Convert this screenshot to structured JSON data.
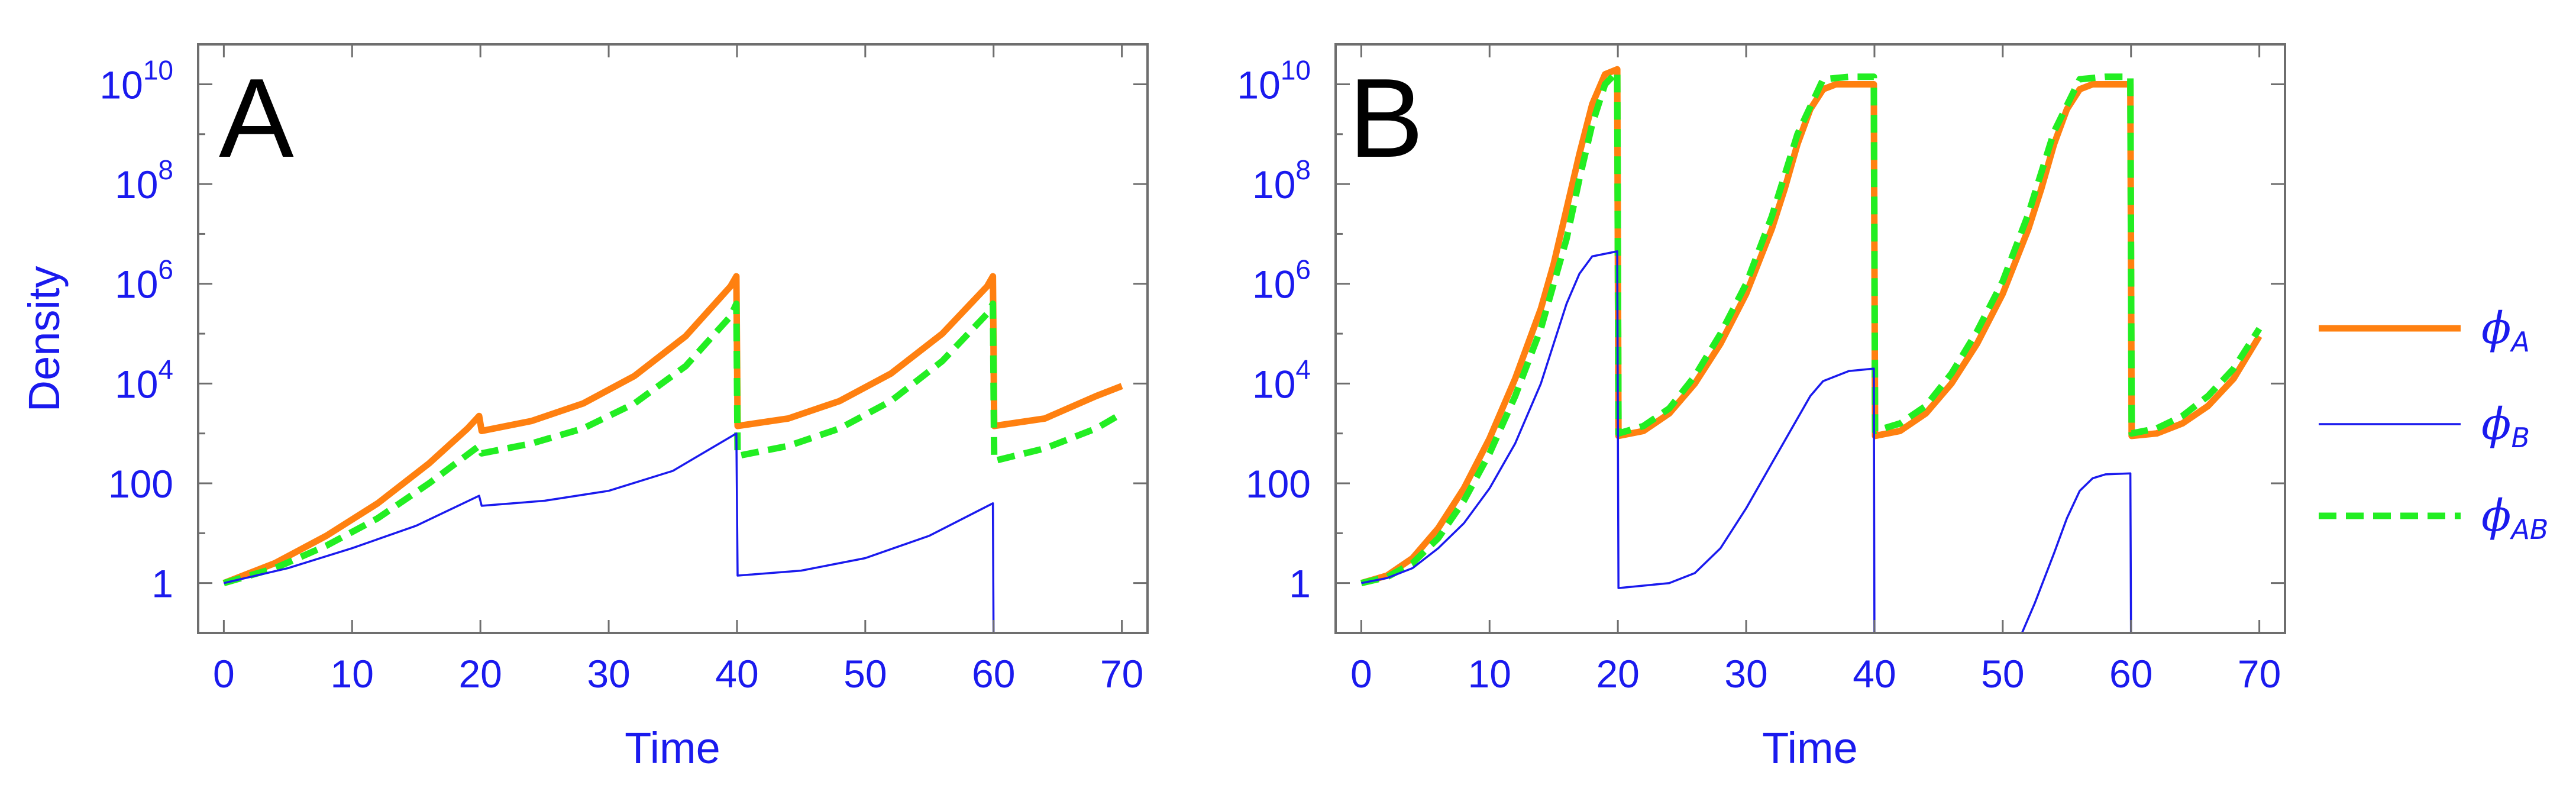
{
  "figure": {
    "legend": [
      {
        "key": "A",
        "symbol": "ϕ",
        "sub": "A",
        "color": "#ff8010",
        "style": "solid",
        "width": "thick"
      },
      {
        "key": "B",
        "symbol": "ϕ",
        "sub": "B",
        "color": "#1a1aee",
        "style": "solid",
        "width": "thin"
      },
      {
        "key": "AB",
        "symbol": "ϕ",
        "sub": "AB",
        "color": "#22ee22",
        "style": "dashed",
        "width": "thick"
      }
    ]
  },
  "chart_data": [
    {
      "type": "line",
      "panel_label": "A",
      "title": "",
      "xlabel": "Time",
      "ylabel": "Density",
      "yscale": "log",
      "xlim": [
        -2,
        72
      ],
      "ylim_log10": [
        -1.0,
        10.8
      ],
      "x_ticks": [
        0,
        10,
        20,
        30,
        40,
        50,
        60,
        70
      ],
      "x_tick_labels": [
        "0",
        "10",
        "20",
        "30",
        "40",
        "50",
        "60",
        "70"
      ],
      "y_ticks_log10": [
        0,
        2,
        4,
        6,
        8,
        10
      ],
      "y_tick_labels": [
        {
          "base": "1",
          "exp": ""
        },
        {
          "base": "100",
          "exp": ""
        },
        {
          "base": "10",
          "exp": "4"
        },
        {
          "base": "10",
          "exp": "6"
        },
        {
          "base": "10",
          "exp": "8"
        },
        {
          "base": "10",
          "exp": "10"
        }
      ],
      "series": [
        {
          "name": "A",
          "points_log10": [
            [
              0,
              0
            ],
            [
              4,
              0.4
            ],
            [
              8,
              0.95
            ],
            [
              12,
              1.6
            ],
            [
              16,
              2.4
            ],
            [
              19,
              3.1
            ],
            [
              19.9,
              3.35
            ],
            [
              20.1,
              3.05
            ],
            [
              24,
              3.25
            ],
            [
              28,
              3.6
            ],
            [
              32,
              4.15
            ],
            [
              36,
              4.95
            ],
            [
              39.5,
              5.95
            ],
            [
              39.95,
              6.15
            ],
            [
              40.05,
              3.15
            ],
            [
              44,
              3.3
            ],
            [
              48,
              3.65
            ],
            [
              52,
              4.2
            ],
            [
              56,
              5.0
            ],
            [
              59.5,
              5.95
            ],
            [
              59.95,
              6.15
            ],
            [
              60.05,
              3.15
            ],
            [
              64,
              3.3
            ],
            [
              68,
              3.75
            ],
            [
              70,
              3.95
            ]
          ]
        },
        {
          "name": "AB",
          "points_log10": [
            [
              0,
              0
            ],
            [
              4,
              0.3
            ],
            [
              8,
              0.75
            ],
            [
              12,
              1.3
            ],
            [
              16,
              2.0
            ],
            [
              19.9,
              2.75
            ],
            [
              20.1,
              2.6
            ],
            [
              24,
              2.8
            ],
            [
              28,
              3.1
            ],
            [
              32,
              3.6
            ],
            [
              36,
              4.35
            ],
            [
              39.5,
              5.35
            ],
            [
              39.95,
              5.6
            ],
            [
              40.05,
              2.55
            ],
            [
              44,
              2.75
            ],
            [
              48,
              3.1
            ],
            [
              52,
              3.65
            ],
            [
              56,
              4.45
            ],
            [
              59.5,
              5.4
            ],
            [
              59.95,
              5.6
            ],
            [
              60.05,
              2.45
            ],
            [
              64,
              2.7
            ],
            [
              68,
              3.1
            ],
            [
              70,
              3.4
            ]
          ]
        },
        {
          "name": "B",
          "points_log10": [
            [
              0,
              0
            ],
            [
              5,
              0.3
            ],
            [
              10,
              0.7
            ],
            [
              15,
              1.15
            ],
            [
              19.9,
              1.75
            ],
            [
              20.1,
              1.55
            ],
            [
              25,
              1.65
            ],
            [
              30,
              1.85
            ],
            [
              35,
              2.25
            ],
            [
              39.95,
              3.0
            ],
            [
              40.05,
              0.15
            ],
            [
              45,
              0.25
            ],
            [
              50,
              0.5
            ],
            [
              55,
              0.95
            ],
            [
              59.95,
              1.6
            ],
            [
              60,
              -1.0
            ]
          ]
        }
      ]
    },
    {
      "type": "line",
      "panel_label": "B",
      "title": "",
      "xlabel": "Time",
      "ylabel": "",
      "yscale": "log",
      "xlim": [
        -2,
        72
      ],
      "ylim_log10": [
        -1.0,
        10.8
      ],
      "x_ticks": [
        0,
        10,
        20,
        30,
        40,
        50,
        60,
        70
      ],
      "x_tick_labels": [
        "0",
        "10",
        "20",
        "30",
        "40",
        "50",
        "60",
        "70"
      ],
      "y_ticks_log10": [
        0,
        2,
        4,
        6,
        8,
        10
      ],
      "y_tick_labels": [
        {
          "base": "1",
          "exp": ""
        },
        {
          "base": "100",
          "exp": ""
        },
        {
          "base": "10",
          "exp": "4"
        },
        {
          "base": "10",
          "exp": "6"
        },
        {
          "base": "10",
          "exp": "8"
        },
        {
          "base": "10",
          "exp": "10"
        }
      ],
      "series": [
        {
          "name": "A",
          "points_log10": [
            [
              0,
              0
            ],
            [
              2,
              0.15
            ],
            [
              4,
              0.5
            ],
            [
              6,
              1.1
            ],
            [
              8,
              1.9
            ],
            [
              10,
              2.9
            ],
            [
              12,
              4.1
            ],
            [
              14,
              5.5
            ],
            [
              15,
              6.4
            ],
            [
              16,
              7.5
            ],
            [
              17,
              8.6
            ],
            [
              18,
              9.6
            ],
            [
              19,
              10.2
            ],
            [
              19.95,
              10.3
            ],
            [
              20.05,
              2.95
            ],
            [
              22,
              3.05
            ],
            [
              24,
              3.4
            ],
            [
              26,
              4.0
            ],
            [
              28,
              4.8
            ],
            [
              30,
              5.8
            ],
            [
              32,
              7.1
            ],
            [
              33,
              7.9
            ],
            [
              34,
              8.8
            ],
            [
              35,
              9.5
            ],
            [
              36,
              9.9
            ],
            [
              37,
              10.0
            ],
            [
              39.95,
              10.0
            ],
            [
              40.05,
              2.95
            ],
            [
              42,
              3.05
            ],
            [
              44,
              3.4
            ],
            [
              46,
              4.0
            ],
            [
              48,
              4.8
            ],
            [
              50,
              5.8
            ],
            [
              52,
              7.1
            ],
            [
              53,
              7.9
            ],
            [
              54,
              8.8
            ],
            [
              55,
              9.5
            ],
            [
              56,
              9.9
            ],
            [
              57,
              10.0
            ],
            [
              59.95,
              10.0
            ],
            [
              60.05,
              2.95
            ],
            [
              62,
              3.0
            ],
            [
              64,
              3.2
            ],
            [
              66,
              3.55
            ],
            [
              68,
              4.1
            ],
            [
              70,
              4.95
            ]
          ]
        },
        {
          "name": "AB",
          "points_log10": [
            [
              0,
              0
            ],
            [
              2,
              0.12
            ],
            [
              4,
              0.4
            ],
            [
              6,
              0.9
            ],
            [
              8,
              1.65
            ],
            [
              10,
              2.6
            ],
            [
              12,
              3.75
            ],
            [
              14,
              5.1
            ],
            [
              16,
              6.9
            ],
            [
              17,
              8.1
            ],
            [
              18,
              9.2
            ],
            [
              19,
              10.0
            ],
            [
              19.95,
              10.25
            ],
            [
              20.05,
              3.0
            ],
            [
              22,
              3.15
            ],
            [
              24,
              3.5
            ],
            [
              26,
              4.15
            ],
            [
              28,
              5.0
            ],
            [
              30,
              6.0
            ],
            [
              32,
              7.35
            ],
            [
              34,
              9.0
            ],
            [
              36,
              10.1
            ],
            [
              38,
              10.15
            ],
            [
              39.95,
              10.15
            ],
            [
              40.05,
              3.05
            ],
            [
              42,
              3.2
            ],
            [
              44,
              3.55
            ],
            [
              46,
              4.2
            ],
            [
              48,
              5.05
            ],
            [
              50,
              6.05
            ],
            [
              52,
              7.4
            ],
            [
              54,
              9.05
            ],
            [
              56,
              10.1
            ],
            [
              58,
              10.15
            ],
            [
              59.95,
              10.15
            ],
            [
              60.05,
              3.0
            ],
            [
              62,
              3.1
            ],
            [
              64,
              3.35
            ],
            [
              66,
              3.75
            ],
            [
              68,
              4.3
            ],
            [
              70,
              5.1
            ]
          ]
        },
        {
          "name": "B",
          "points_log10": [
            [
              0,
              0
            ],
            [
              2,
              0.1
            ],
            [
              4,
              0.3
            ],
            [
              6,
              0.7
            ],
            [
              8,
              1.2
            ],
            [
              10,
              1.9
            ],
            [
              12,
              2.8
            ],
            [
              14,
              4.0
            ],
            [
              15,
              4.8
            ],
            [
              16,
              5.6
            ],
            [
              17,
              6.2
            ],
            [
              18,
              6.55
            ],
            [
              19.95,
              6.65
            ],
            [
              20.05,
              -0.1
            ],
            [
              24,
              0.0
            ],
            [
              26,
              0.2
            ],
            [
              28,
              0.7
            ],
            [
              30,
              1.5
            ],
            [
              32,
              2.4
            ],
            [
              34,
              3.3
            ],
            [
              35,
              3.75
            ],
            [
              36,
              4.05
            ],
            [
              38,
              4.25
            ],
            [
              39.95,
              4.3
            ],
            [
              40,
              -1.0
            ],
            [
              51.5,
              -1.0
            ],
            [
              52.5,
              -0.4
            ],
            [
              54,
              0.6
            ],
            [
              55,
              1.3
            ],
            [
              56,
              1.85
            ],
            [
              57,
              2.1
            ],
            [
              58,
              2.18
            ],
            [
              59.95,
              2.2
            ],
            [
              60,
              -1.0
            ]
          ]
        }
      ]
    }
  ]
}
